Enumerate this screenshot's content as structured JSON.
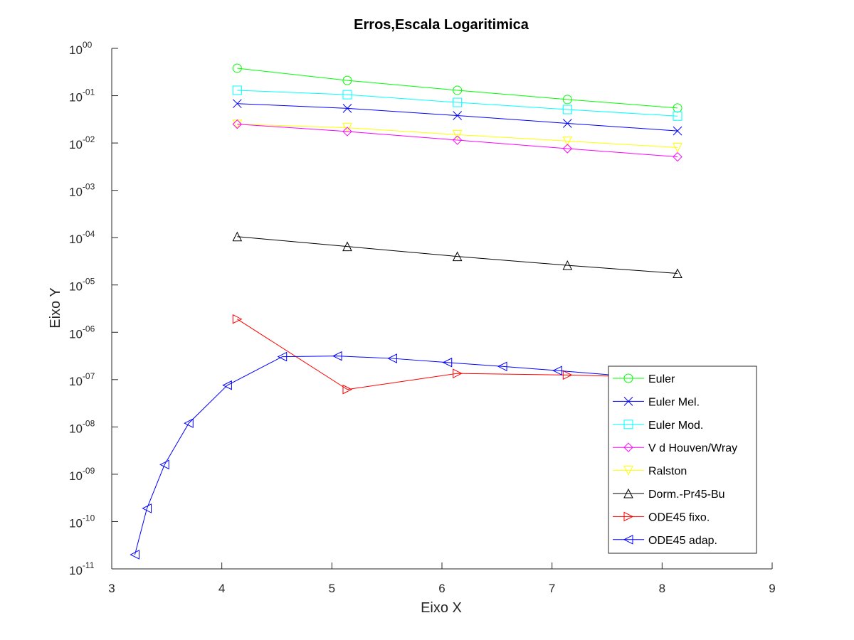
{
  "chart_data": {
    "type": "line",
    "title": "Erros,Escala Logaritimica",
    "xlabel": "Eixo X",
    "ylabel": "Eixo Y",
    "xlim": [
      3,
      9
    ],
    "ylim": [
      1e-11,
      1
    ],
    "yscale": "log",
    "grid": false,
    "legend_position": "bottom-right",
    "x_ticks": [
      3,
      4,
      5,
      6,
      7,
      8,
      9
    ],
    "y_tick_exponents": [
      0,
      -1,
      -2,
      -3,
      -4,
      -5,
      -6,
      -7,
      -8,
      -9,
      -10,
      -11
    ],
    "y_tick_mantissa": "10",
    "y_tick_exponent_labels": [
      "00",
      "-01",
      "-02",
      "-03",
      "-04",
      "-05",
      "-06",
      "-07",
      "-08",
      "-09",
      "-10",
      "-11"
    ],
    "series": [
      {
        "name": "Euler",
        "color": "#00ff00",
        "marker": "circle",
        "x": [
          4.14,
          5.14,
          6.14,
          7.14,
          8.14
        ],
        "y": [
          0.38,
          0.21,
          0.13,
          0.083,
          0.055
        ]
      },
      {
        "name": "Euler Mel.",
        "color": "#0000ff",
        "marker": "x",
        "x": [
          4.14,
          5.14,
          6.14,
          7.14,
          8.14
        ],
        "y": [
          0.068,
          0.054,
          0.038,
          0.026,
          0.018
        ]
      },
      {
        "name": "Euler Mod.",
        "color": "#00ffff",
        "marker": "square",
        "x": [
          4.14,
          5.14,
          6.14,
          7.14,
          8.14
        ],
        "y": [
          0.13,
          0.105,
          0.072,
          0.051,
          0.037
        ]
      },
      {
        "name": "V d Houven/Wray",
        "color": "#ff00ff",
        "marker": "diamond",
        "x": [
          4.14,
          5.14,
          6.14,
          7.14,
          8.14
        ],
        "y": [
          0.025,
          0.0175,
          0.0115,
          0.0076,
          0.0051
        ]
      },
      {
        "name": "Ralston",
        "color": "#ffff00",
        "marker": "triangle-down",
        "x": [
          4.14,
          5.14,
          6.14,
          7.14,
          8.14
        ],
        "y": [
          0.025,
          0.021,
          0.015,
          0.011,
          0.008
        ]
      },
      {
        "name": "Dorm.-Pr45-Bu",
        "color": "#000000",
        "marker": "triangle-up",
        "x": [
          4.14,
          5.14,
          6.14,
          7.14,
          8.14
        ],
        "y": [
          0.000105,
          6.5e-05,
          4e-05,
          2.6e-05,
          1.75e-05
        ]
      },
      {
        "name": "ODE45 fixo.",
        "color": "#ff0000",
        "marker": "triangle-right",
        "x": [
          4.14,
          5.14,
          6.14,
          7.14,
          8.14
        ],
        "y": [
          1.9e-06,
          6.2e-08,
          1.35e-07,
          1.25e-07,
          1.1e-07
        ]
      },
      {
        "name": "ODE45 adap.",
        "color": "#0000ff",
        "marker": "triangle-left",
        "x": [
          3.21,
          3.32,
          3.48,
          3.7,
          4.05,
          4.55,
          5.05,
          5.55,
          6.05,
          6.55,
          7.05,
          7.55
        ],
        "y": [
          2e-11,
          1.9e-10,
          1.6e-09,
          1.2e-08,
          7.6e-08,
          3.05e-07,
          3.15e-07,
          2.8e-07,
          2.3e-07,
          1.9e-07,
          1.55e-07,
          1.25e-07
        ]
      }
    ]
  }
}
